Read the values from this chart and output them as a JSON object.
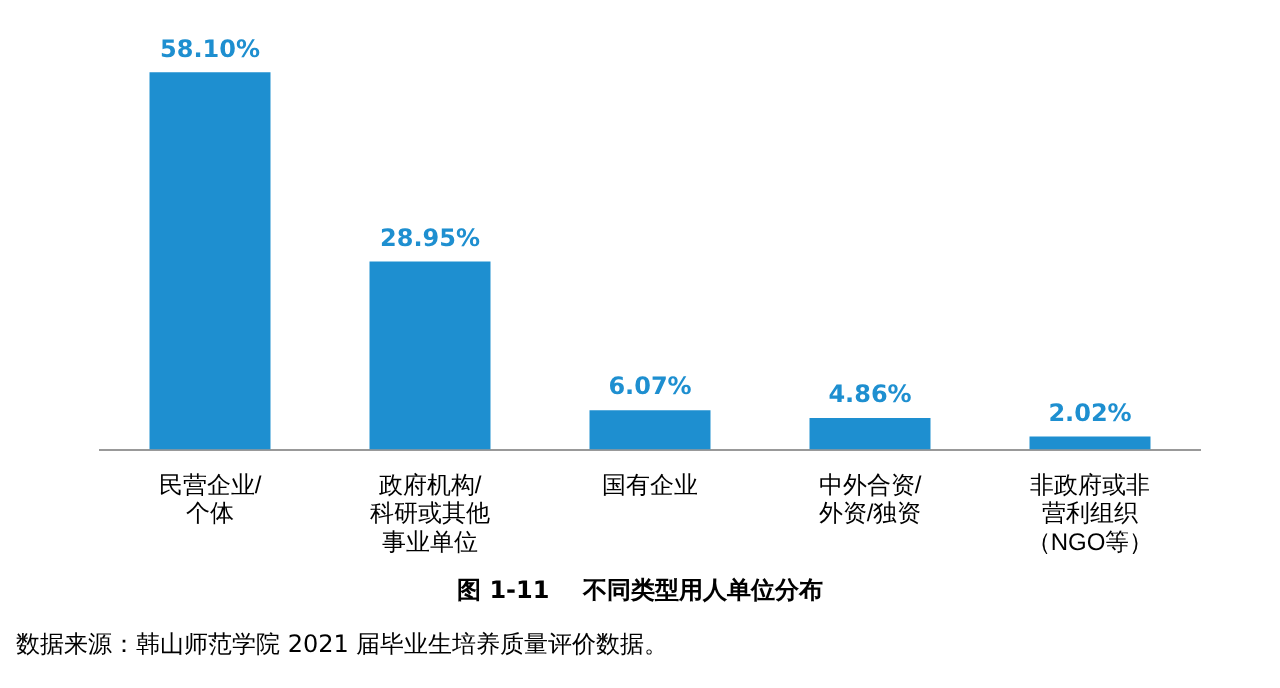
{
  "chart_data": {
    "type": "bar",
    "title": "图 1-11    不同类型用人单位分布",
    "categories": [
      "民营企业/个体",
      "政府机构/科研或其他事业单位",
      "国有企业",
      "中外合资/外资/独资",
      "非政府或非营利组织（NGO等）"
    ],
    "values": [
      58.1,
      28.95,
      6.07,
      4.86,
      2.02
    ],
    "value_labels": [
      "58.10%",
      "28.95%",
      "6.07%",
      "4.86%",
      "2.02%"
    ],
    "color": "#1e8fd0",
    "grid": false,
    "legend": false,
    "annotations": [
      "数据来源：韩山师范学院 2021 届毕业生培养质量评价数据。"
    ]
  }
}
